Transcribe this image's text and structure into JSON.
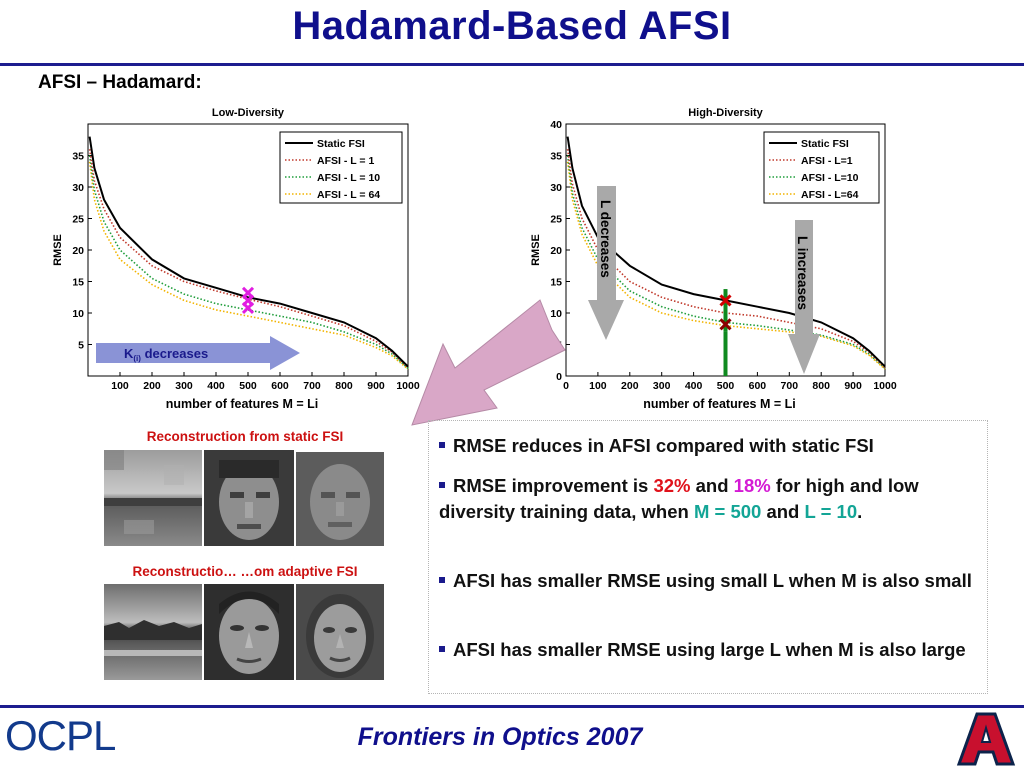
{
  "slide": {
    "title": "Hadamard-Based AFSI",
    "section_heading": "AFSI – Hadamard:",
    "footer": "Frontiers in Optics 2007",
    "logo_left": "OCPL"
  },
  "colors": {
    "title_blue": "#0f0f8c",
    "static_fsi": "#000000",
    "afsi_l1": "#c0392b",
    "afsi_l10": "#1f9d3a",
    "afsi_l64": "#f2b400",
    "marker_magenta": "#e11de1",
    "marker_red": "#d10000",
    "marker_darkred": "#8b0000",
    "green_line": "#0f8a1f",
    "gray_arrow": "#a9a9a9",
    "blue_arrow": "#8a93d6",
    "pink_arrow": "#d9a7c7"
  },
  "annotations": {
    "k_decreases": "K",
    "k_sub": "(i)",
    "k_decreases_rest": " decreases",
    "l_decreases": "L decreases",
    "l_increases": "L increases"
  },
  "chart_data": [
    {
      "type": "line",
      "title": "Low-Diversity",
      "xlabel": "number of features M = Li",
      "ylabel": "RMSE",
      "xlim": [
        0,
        1000
      ],
      "ylim": [
        0,
        40
      ],
      "xticks": [
        100,
        200,
        300,
        400,
        500,
        600,
        700,
        800,
        900,
        1000
      ],
      "yticks": [
        5,
        10,
        15,
        20,
        25,
        30,
        35
      ],
      "legend_position": "top-right",
      "x": [
        5,
        20,
        50,
        100,
        200,
        300,
        400,
        500,
        600,
        700,
        800,
        900,
        950,
        1000
      ],
      "series": [
        {
          "name": "Static FSI",
          "style": "solid",
          "values": [
            38,
            33,
            28,
            23.5,
            18.5,
            15.5,
            14,
            12.5,
            11.5,
            10,
            8.5,
            6,
            4,
            1.5
          ]
        },
        {
          "name": "AFSI - L = 1",
          "style": "dotted",
          "values": [
            36,
            31,
            26.5,
            22,
            17.5,
            15,
            13.5,
            12.2,
            11,
            9.5,
            8,
            5.5,
            3.8,
            1.3
          ]
        },
        {
          "name": "AFSI - L = 10",
          "style": "dotted",
          "values": [
            35,
            29.5,
            24.5,
            20,
            15.5,
            13,
            11.5,
            10.5,
            9.5,
            8.5,
            7,
            5,
            3.5,
            1.2
          ]
        },
        {
          "name": "AFSI - L = 64",
          "style": "dotted",
          "values": [
            34,
            28,
            23,
            18.5,
            14.5,
            12,
            10.5,
            9.5,
            8.5,
            7.5,
            6.5,
            4.5,
            3.2,
            1.1
          ]
        }
      ],
      "markers": [
        {
          "x": 500,
          "y": 13.2,
          "color": "magenta"
        },
        {
          "x": 500,
          "y": 12.0,
          "color": "magenta"
        },
        {
          "x": 500,
          "y": 10.8,
          "color": "magenta"
        }
      ]
    },
    {
      "type": "line",
      "title": "High-Diversity",
      "xlabel": "number of features M = Li",
      "ylabel": "RMSE",
      "xlim": [
        0,
        1000
      ],
      "ylim": [
        0,
        40
      ],
      "xticks": [
        0,
        100,
        200,
        300,
        400,
        500,
        600,
        700,
        800,
        900,
        1000
      ],
      "yticks": [
        0,
        5,
        10,
        15,
        20,
        25,
        30,
        35,
        40
      ],
      "legend_position": "top-right",
      "x": [
        5,
        20,
        50,
        100,
        200,
        300,
        400,
        500,
        600,
        700,
        800,
        900,
        950,
        1000
      ],
      "series": [
        {
          "name": "Static FSI",
          "style": "solid",
          "values": [
            38,
            33,
            27,
            22,
            17.5,
            14.5,
            13,
            12,
            11,
            10,
            8.5,
            6,
            4,
            1.5
          ]
        },
        {
          "name": "AFSI - L=1",
          "style": "dotted",
          "values": [
            36,
            30.5,
            25,
            20,
            15,
            12.5,
            11,
            10,
            9.5,
            8.5,
            7.5,
            5.5,
            3.8,
            1.3
          ]
        },
        {
          "name": "AFSI - L=10",
          "style": "dotted",
          "values": [
            35,
            29,
            23.5,
            18.5,
            13.5,
            11,
            9.5,
            8.5,
            8,
            7.3,
            6.5,
            5,
            3.5,
            1.2
          ]
        },
        {
          "name": "AFSI - L=64",
          "style": "dotted",
          "values": [
            34,
            28,
            22.5,
            17.5,
            12.5,
            10,
            8.8,
            8,
            7.5,
            7,
            6.3,
            4.8,
            3.3,
            1.1
          ]
        }
      ],
      "markers": [
        {
          "x": 500,
          "y": 12.0,
          "color": "red"
        },
        {
          "x": 500,
          "y": 8.2,
          "color": "darkred"
        }
      ],
      "vline": {
        "x": 500,
        "color": "green"
      }
    }
  ],
  "reconstruction": {
    "static_label": "Reconstruction from static FSI",
    "adaptive_label": "Reconstructio… …om adaptive FSI"
  },
  "bullets": {
    "b1": "RMSE reduces in AFSI compared with static FSI",
    "b2_a": "RMSE improvement is ",
    "b2_v1": "32%",
    "b2_b": " and ",
    "b2_v2": "18%",
    "b2_c": " for high and low diversity training data, when ",
    "b2_m": "M = 500",
    "b2_d": " and ",
    "b2_l": "L = 10",
    "b2_e": ".",
    "b3": "AFSI has smaller RMSE using small L when M is also small",
    "b4": "AFSI has smaller RMSE using large L when M is also large"
  }
}
